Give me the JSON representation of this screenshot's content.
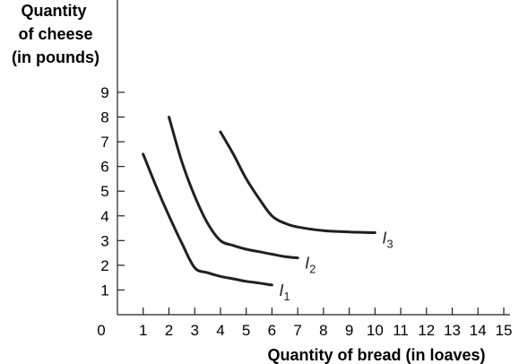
{
  "chart_data": {
    "type": "line",
    "title": "",
    "ylabel_lines": [
      "Quantity",
      "of cheese",
      "(in pounds)"
    ],
    "xlabel": "Quantity of bread (in loaves)",
    "origin_label": "0",
    "xlim": [
      0,
      15
    ],
    "ylim": [
      0,
      9
    ],
    "x_ticks": [
      "1",
      "2",
      "3",
      "4",
      "5",
      "6",
      "7",
      "8",
      "9",
      "10",
      "11",
      "12",
      "13",
      "14",
      "15"
    ],
    "y_ticks": [
      "1",
      "2",
      "3",
      "4",
      "5",
      "6",
      "7",
      "8",
      "9"
    ],
    "grid": false,
    "series": [
      {
        "name": "I1",
        "label_main": "I",
        "label_sub": "1",
        "x": [
          1,
          1.5,
          2,
          2.5,
          3,
          3.5,
          4,
          4.5,
          5,
          5.5,
          6
        ],
        "y": [
          6.5,
          5.2,
          4.0,
          2.9,
          1.9,
          1.7,
          1.55,
          1.45,
          1.35,
          1.28,
          1.2
        ]
      },
      {
        "name": "I2",
        "label_main": "I",
        "label_sub": "2",
        "x": [
          2,
          2.5,
          3,
          3.5,
          4,
          4.5,
          5,
          5.5,
          6,
          6.5,
          7
        ],
        "y": [
          8.0,
          6.2,
          4.8,
          3.7,
          3.0,
          2.8,
          2.65,
          2.55,
          2.45,
          2.35,
          2.3
        ]
      },
      {
        "name": "I3",
        "label_main": "I",
        "label_sub": "3",
        "x": [
          4,
          4.5,
          5,
          5.5,
          6,
          6.5,
          7,
          8,
          9,
          10
        ],
        "y": [
          7.4,
          6.5,
          5.5,
          4.7,
          4.0,
          3.7,
          3.55,
          3.4,
          3.35,
          3.32
        ]
      }
    ],
    "curve_label_color": "#231f20",
    "curve_color": "#231f20"
  }
}
